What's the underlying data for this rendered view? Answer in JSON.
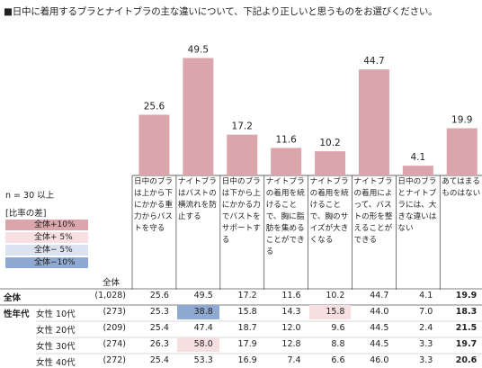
{
  "title": "■日中に着用するブラとナイトブラの主な違いについて、下記より正しいと思うものをお選びください。",
  "colors": {
    "bar": "#dba6ab",
    "high10": "#dba6ab",
    "high5": "#f6dfe1",
    "low5": "#dbe3f0",
    "low10": "#8faad2"
  },
  "chart_data": {
    "type": "bar",
    "categories": [
      "日中のブラは上から下にかかる重力からバストを守る",
      "ナイトブラはバストの横流れを防止する",
      "日中のブラは下から上にかかる力でバストをサポートする",
      "ナイトブラの着用を続けることで、胸に脂肪を集めることができる",
      "ナイトブラの着用を続けることで、胸のサイズが大きくなる",
      "ナイトブラの着用によって、バストの形を整えることができる",
      "日中のブラとナイトブラには、大きな違いはない",
      "あてはまるものはない"
    ],
    "values": [
      25.6,
      49.5,
      17.2,
      11.6,
      10.2,
      44.7,
      4.1,
      19.9
    ],
    "ylim": [
      0,
      55
    ]
  },
  "ncount": "n = 30 以上",
  "legend": {
    "title": "[比率の差]",
    "items": [
      "全体+10%",
      "全体+ 5%",
      "全体− 5%",
      "全体−10%"
    ]
  },
  "table": {
    "header": "全体",
    "group_label": "性年代",
    "rows": [
      {
        "label": "全体",
        "n": "(1,028)",
        "values": [
          "25.6",
          "49.5",
          "17.2",
          "11.6",
          "10.2",
          "44.7",
          "4.1",
          "19.9"
        ],
        "highlights": [
          "",
          "",
          "",
          "",
          "",
          "",
          "",
          ""
        ]
      },
      {
        "label": "女性 10代",
        "n": "(273)",
        "values": [
          "25.3",
          "38.8",
          "15.8",
          "14.3",
          "15.8",
          "44.0",
          "7.0",
          "18.3"
        ],
        "highlights": [
          "",
          "low10",
          "",
          "",
          "high5",
          "",
          "",
          ""
        ]
      },
      {
        "label": "女性 20代",
        "n": "(209)",
        "values": [
          "25.4",
          "47.4",
          "18.7",
          "12.0",
          "9.6",
          "44.5",
          "2.4",
          "21.5"
        ],
        "highlights": [
          "",
          "",
          "",
          "",
          "",
          "",
          "",
          ""
        ]
      },
      {
        "label": "女性 30代",
        "n": "(274)",
        "values": [
          "26.3",
          "58.0",
          "17.9",
          "12.8",
          "8.8",
          "44.5",
          "3.3",
          "19.7"
        ],
        "highlights": [
          "",
          "high5",
          "",
          "",
          "",
          "",
          "",
          ""
        ]
      },
      {
        "label": "女性 40代",
        "n": "(272)",
        "values": [
          "25.4",
          "53.3",
          "16.9",
          "7.4",
          "6.6",
          "46.0",
          "3.3",
          "20.6"
        ],
        "highlights": [
          "",
          "",
          "",
          "",
          "",
          "",
          "",
          ""
        ]
      }
    ]
  }
}
